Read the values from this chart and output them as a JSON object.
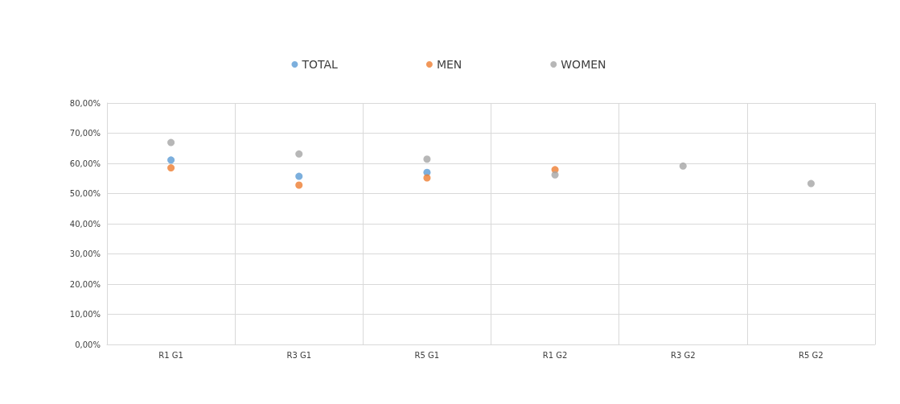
{
  "chart_data": {
    "type": "scatter",
    "categories": [
      "R1 G1",
      "R3 G1",
      "R5 G1",
      "R1 G2",
      "R3 G2",
      "R5 G2"
    ],
    "series": [
      {
        "name": "TOTAL",
        "color": "#5b9bd5",
        "values": [
          61.1,
          55.7,
          57.0,
          null,
          null,
          null
        ]
      },
      {
        "name": "MEN",
        "color": "#ed7d31",
        "values": [
          58.5,
          52.8,
          55.2,
          57.9,
          null,
          null
        ]
      },
      {
        "name": "WOMEN",
        "color": "#a5a5a5",
        "values": [
          66.9,
          63.1,
          61.4,
          56.2,
          59.1,
          53.3
        ]
      }
    ],
    "ylim": [
      0,
      80
    ],
    "yticks": [
      {
        "value": 0,
        "label": "0,00%"
      },
      {
        "value": 10,
        "label": "10,00%"
      },
      {
        "value": 20,
        "label": "20,00%"
      },
      {
        "value": 30,
        "label": "30,00%"
      },
      {
        "value": 40,
        "label": "40,00%"
      },
      {
        "value": 50,
        "label": "50,00%"
      },
      {
        "value": 60,
        "label": "60,00%"
      },
      {
        "value": 70,
        "label": "70,00%"
      },
      {
        "value": 80,
        "label": "80,00%"
      }
    ],
    "grid": true,
    "legend": "top",
    "marker": "circle"
  }
}
